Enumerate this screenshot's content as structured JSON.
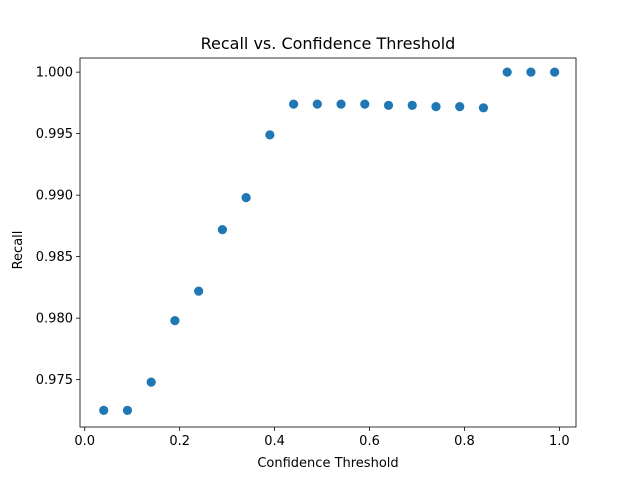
{
  "chart_data": {
    "type": "scatter",
    "title": "Recall vs. Confidence Threshold",
    "xlabel": "Confidence Threshold",
    "ylabel": "Recall",
    "xlim": [
      -0.01,
      1.035
    ],
    "ylim": [
      0.97115,
      1.00115
    ],
    "xticks": [
      0.0,
      0.2,
      0.4,
      0.6,
      0.8,
      1.0
    ],
    "xtick_labels": [
      "0.0",
      "0.2",
      "0.4",
      "0.6",
      "0.8",
      "1.0"
    ],
    "yticks": [
      0.975,
      0.98,
      0.985,
      0.99,
      0.995,
      1.0
    ],
    "ytick_labels": [
      "0.975",
      "0.980",
      "0.985",
      "0.990",
      "0.995",
      "1.000"
    ],
    "grid": false,
    "marker_color": "#1f77b4",
    "x": [
      0.04,
      0.09,
      0.14,
      0.19,
      0.24,
      0.29,
      0.34,
      0.39,
      0.44,
      0.49,
      0.54,
      0.59,
      0.64,
      0.69,
      0.74,
      0.79,
      0.84,
      0.89,
      0.94,
      0.99
    ],
    "y": [
      0.9725,
      0.9725,
      0.9748,
      0.9798,
      0.9822,
      0.9872,
      0.9898,
      0.9949,
      0.9974,
      0.9974,
      0.9974,
      0.9974,
      0.9973,
      0.9973,
      0.9972,
      0.9972,
      0.9971,
      1.0,
      1.0,
      1.0
    ]
  }
}
